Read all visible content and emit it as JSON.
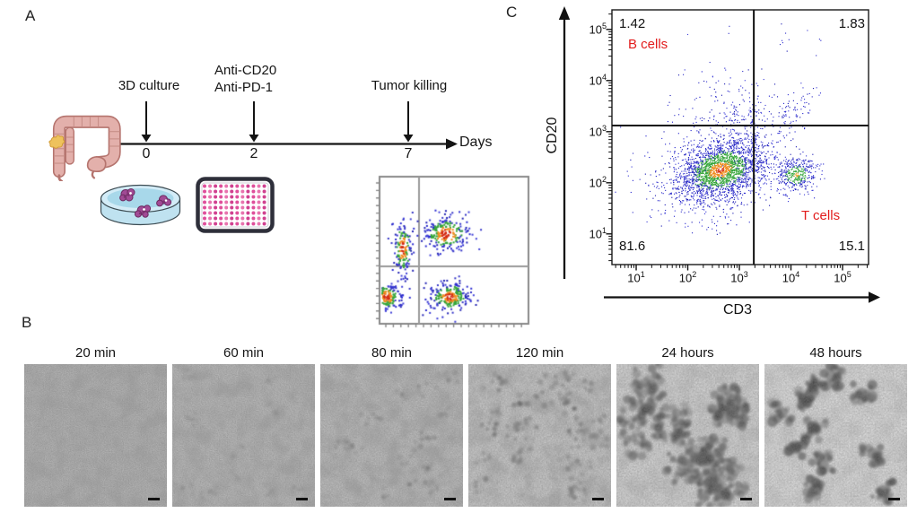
{
  "panel_a": {
    "label": "A",
    "timeline": {
      "axis_label": "Days",
      "events": [
        {
          "lines": [
            "3D culture",
            ""
          ],
          "day": "0"
        },
        {
          "lines": [
            "Anti-CD20",
            "Anti-PD-1"
          ],
          "day": "2"
        },
        {
          "lines": [
            "Tumor killing",
            ""
          ],
          "day": "7"
        }
      ]
    },
    "icons": [
      {
        "name": "colon-with-tumor"
      },
      {
        "name": "petri-dish-with-organoids"
      },
      {
        "name": "96-well-plate"
      },
      {
        "name": "mini-flow-cytometry-plot"
      }
    ]
  },
  "panel_b": {
    "label": "B",
    "timepoints": [
      {
        "label": "20 min"
      },
      {
        "label": "60 min"
      },
      {
        "label": "80 min"
      },
      {
        "label": "120 min"
      },
      {
        "label": "24 hours"
      },
      {
        "label": "48 hours"
      }
    ],
    "has_scale_bars": true
  },
  "panel_c": {
    "label": "C"
  },
  "chart_data": {
    "type": "scatter",
    "title": "",
    "xlabel": "CD3",
    "ylabel": "CD20",
    "xscale": "log",
    "yscale": "log",
    "xlim_log10": [
      0.53,
      5.49
    ],
    "ylim_log10": [
      0.4,
      5.39
    ],
    "tick_exponents": [
      1,
      2,
      3,
      4,
      5
    ],
    "grid": false,
    "legend": false,
    "gates": {
      "vertical_x_log10": 3.28,
      "horizontal_y_log10": 3.12
    },
    "quadrants": [
      {
        "position": "upper-left",
        "value": "1.42",
        "cell_label": "B cells"
      },
      {
        "position": "upper-right",
        "value": "1.83",
        "cell_label": ""
      },
      {
        "position": "lower-left",
        "value": "81.6",
        "cell_label": ""
      },
      {
        "position": "lower-right",
        "value": "15.1",
        "cell_label": "T cells"
      }
    ],
    "label_color": "#e21d1d",
    "populations": [
      {
        "name": "main-double-negative",
        "n": 2300,
        "cx": 2.62,
        "cy": 2.26,
        "sx": 0.42,
        "sy": 0.3,
        "corr": 0.3,
        "palette": "heat"
      },
      {
        "name": "t-cells",
        "n": 400,
        "cx": 4.1,
        "cy": 2.16,
        "sx": 0.21,
        "sy": 0.17,
        "corr": 0.15,
        "palette": "heat-green"
      },
      {
        "name": "bridge",
        "n": 130,
        "cx": 3.5,
        "cy": 2.35,
        "sx": 0.33,
        "sy": 0.3,
        "corr": 0,
        "palette": "blue"
      },
      {
        "name": "left-scatter",
        "n": 170,
        "cx": 1.8,
        "cy": 2.1,
        "sx": 0.55,
        "sy": 0.45,
        "corr": 0,
        "palette": "blue"
      },
      {
        "name": "lower-tail",
        "n": 110,
        "cx": 2.55,
        "cy": 1.55,
        "sx": 0.5,
        "sy": 0.28,
        "corr": 0,
        "palette": "blue"
      },
      {
        "name": "upper-band",
        "n": 150,
        "cx": 2.85,
        "cy": 3.3,
        "sx": 0.55,
        "sy": 0.22,
        "corr": 0,
        "palette": "blue"
      },
      {
        "name": "gate-column",
        "n": 55,
        "cx": 3.27,
        "cy": 3.05,
        "sx": 0.05,
        "sy": 0.35,
        "corr": 0,
        "palette": "blue"
      },
      {
        "name": "upper-right-plume",
        "n": 75,
        "cx": 4.05,
        "cy": 3.35,
        "sx": 0.24,
        "sy": 0.3,
        "corr": 0.3,
        "palette": "blue"
      },
      {
        "name": "upper-mid-scatter",
        "n": 60,
        "cx": 2.9,
        "cy": 3.8,
        "sx": 0.5,
        "sy": 0.35,
        "corr": 0,
        "palette": "blue"
      },
      {
        "name": "top-outliers",
        "n": 14,
        "cx": 3.8,
        "cy": 4.9,
        "sx": 0.6,
        "sy": 0.3,
        "corr": 0,
        "palette": "blue"
      }
    ]
  }
}
